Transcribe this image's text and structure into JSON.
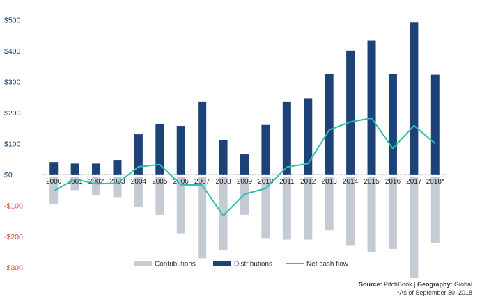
{
  "chart_data": {
    "type": "bar",
    "categories": [
      "2000",
      "2001",
      "2002",
      "2003",
      "2004",
      "2005",
      "2006",
      "2007",
      "2008",
      "2009",
      "2010",
      "2011",
      "2012",
      "2013",
      "2014",
      "2015",
      "2016",
      "2017",
      "2018*"
    ],
    "series": [
      {
        "name": "Contributions",
        "type": "bar",
        "color": "#c5cbd5",
        "values": [
          -95,
          -50,
          -65,
          -75,
          -105,
          -130,
          -190,
          -270,
          -245,
          -130,
          -205,
          -210,
          -210,
          -180,
          -230,
          -250,
          -240,
          -335,
          -220
        ]
      },
      {
        "name": "Distributions",
        "type": "bar",
        "color": "#1d4277",
        "values": [
          40,
          35,
          35,
          47,
          130,
          162,
          157,
          236,
          112,
          65,
          160,
          236,
          246,
          324,
          400,
          432,
          324,
          491,
          322
        ]
      },
      {
        "name": "Net cash flow",
        "type": "line",
        "color": "#2bbfb0",
        "values": [
          -53,
          -15,
          -30,
          -28,
          25,
          32,
          -33,
          -34,
          -133,
          -63,
          -45,
          24,
          35,
          144,
          170,
          182,
          84,
          158,
          100
        ]
      }
    ],
    "ylim": [
      -340,
      510
    ],
    "yticks": [
      500,
      400,
      300,
      200,
      100,
      0,
      -100,
      -200,
      -300
    ],
    "ytick_labels": [
      "$500",
      "$400",
      "$300",
      "$200",
      "$100",
      "$0",
      "-$100",
      "-$200",
      "-$300"
    ],
    "grid": false,
    "legend_position": "bottom"
  },
  "footer": {
    "source_label": "Source:",
    "source_value": "PitchBook",
    "separator": "|",
    "geography_label": "Geography:",
    "geography_value": "Global",
    "note": "*As of September 30, 2018"
  }
}
